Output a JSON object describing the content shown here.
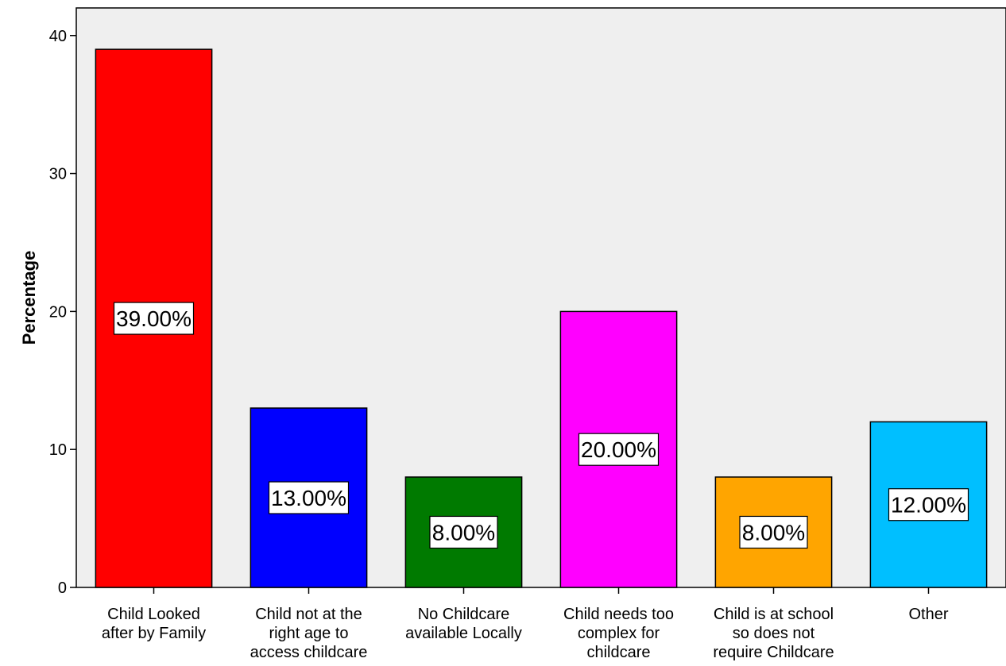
{
  "chart_data": {
    "type": "bar",
    "title": "",
    "xlabel": "",
    "ylabel": "Percentage",
    "ylim": [
      0,
      42
    ],
    "yticks": [
      0,
      10,
      20,
      30,
      40
    ],
    "grid": false,
    "legend": "none",
    "categories": [
      [
        "Child Looked",
        "after by Family"
      ],
      [
        "Child not at the",
        "right age to",
        "access childcare"
      ],
      [
        "No Childcare",
        "available Locally"
      ],
      [
        "Child needs too",
        "complex for",
        "childcare"
      ],
      [
        "Child is at school",
        "so does not",
        "require Childcare"
      ],
      [
        "Other"
      ]
    ],
    "values": [
      39,
      13,
      8,
      20,
      8,
      12
    ],
    "data_labels": [
      "39.00%",
      "13.00%",
      "8.00%",
      "20.00%",
      "8.00%",
      "12.00%"
    ],
    "colors": [
      "#ff0000",
      "#0000ff",
      "#007a00",
      "#ff00ff",
      "#ffa500",
      "#00bfff"
    ],
    "plot_background": "#efefef"
  }
}
